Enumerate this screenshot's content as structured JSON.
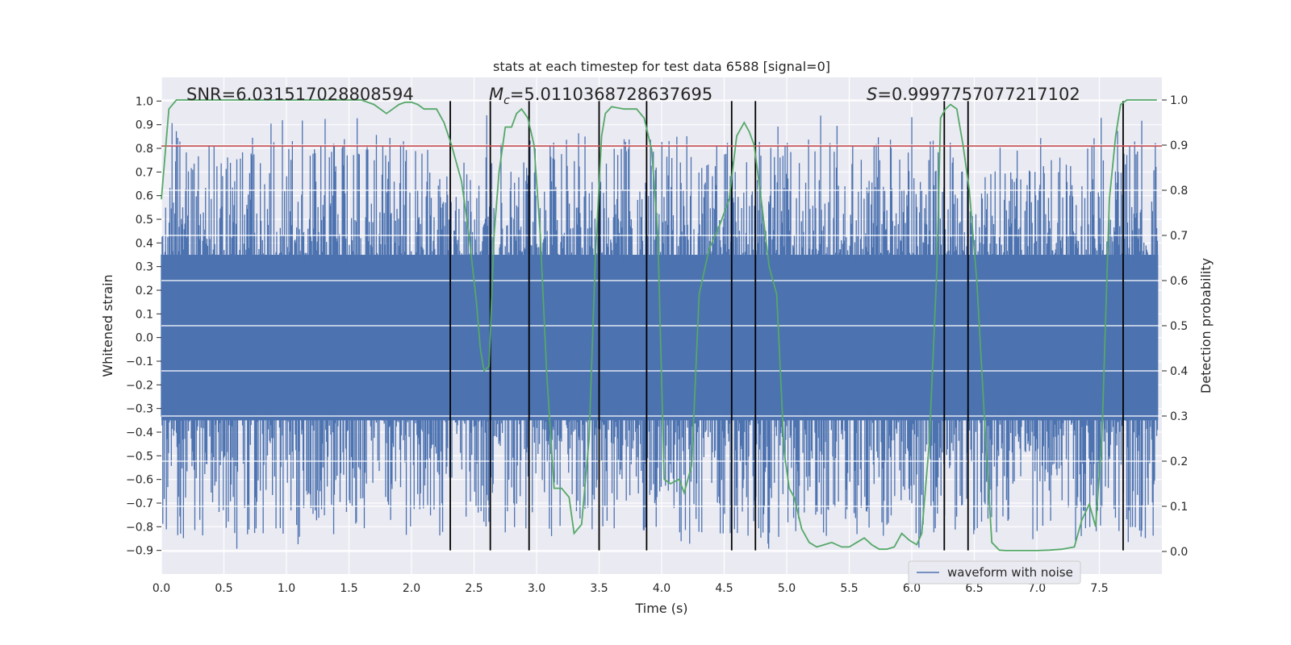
{
  "chart_data": {
    "type": "line",
    "title": "stats at each timestep for test data 6588 [signal=0]",
    "xlabel": "Time (s)",
    "ylabel": "Whitened strain",
    "y2label": "Detection probability",
    "xlim": [
      0,
      8
    ],
    "ylim": [
      -1.0,
      1.1
    ],
    "y2lim": [
      -0.05,
      1.05
    ],
    "x_ticks": [
      0.0,
      0.5,
      1.0,
      1.5,
      2.0,
      2.5,
      3.0,
      3.5,
      4.0,
      4.5,
      5.0,
      5.5,
      6.0,
      6.5,
      7.0,
      7.5
    ],
    "x_tick_labels": [
      "0.0",
      "0.5",
      "1.0",
      "1.5",
      "2.0",
      "2.5",
      "3.0",
      "3.5",
      "4.0",
      "4.5",
      "5.0",
      "5.5",
      "6.0",
      "6.5",
      "7.0",
      "7.5"
    ],
    "y_ticks": [
      -0.9,
      -0.8,
      -0.7,
      -0.6,
      -0.5,
      -0.4,
      -0.3,
      -0.2,
      -0.1,
      0.0,
      0.1,
      0.2,
      0.3,
      0.4,
      0.5,
      0.6,
      0.7,
      0.8,
      0.9,
      1.0
    ],
    "y_tick_labels": [
      "−0.9",
      "−0.8",
      "−0.7",
      "−0.6",
      "−0.5",
      "−0.4",
      "−0.3",
      "−0.2",
      "−0.1",
      "0.0",
      "0.1",
      "0.2",
      "0.3",
      "0.4",
      "0.5",
      "0.6",
      "0.7",
      "0.8",
      "0.9",
      "1.0"
    ],
    "y2_ticks": [
      0.0,
      0.1,
      0.2,
      0.3,
      0.4,
      0.5,
      0.6,
      0.7,
      0.8,
      0.9,
      1.0
    ],
    "y2_tick_labels": [
      "0.0",
      "0.1",
      "0.2",
      "0.3",
      "0.4",
      "0.5",
      "0.6",
      "0.7",
      "0.8",
      "0.9",
      "1.0"
    ],
    "grid": true,
    "legend": {
      "placement": "lower-right",
      "entries": [
        "waveform with noise"
      ]
    },
    "annotations": {
      "snr": "SNR=6.031517028808594",
      "mc_symbol": "M",
      "mc_sub": "c",
      "mc_value": "=5.0110368728637695",
      "s_symbol": "S",
      "s_value": "=0.9997757077217102"
    },
    "threshold": {
      "value": 0.81,
      "axis": "left",
      "color": "#c44e52"
    },
    "vertical_lines": [
      2.31,
      2.63,
      2.94,
      3.5,
      3.88,
      4.56,
      4.75,
      6.26,
      6.45,
      7.69
    ],
    "series": [
      {
        "name": "waveform with noise",
        "axis": "left",
        "kind": "noise",
        "color": "#4c72b0",
        "samples": 1400,
        "core_amplitude": 0.35,
        "peak_range": [
          -0.9,
          0.95
        ]
      },
      {
        "axis": "right",
        "color": "#55a868",
        "x": [
          0.0,
          0.06,
          0.12,
          0.2,
          0.3,
          0.4,
          0.5,
          0.6,
          0.7,
          0.8,
          0.9,
          1.0,
          1.1,
          1.2,
          1.3,
          1.4,
          1.5,
          1.6,
          1.7,
          1.8,
          1.85,
          1.9,
          1.95,
          2.0,
          2.05,
          2.1,
          2.2,
          2.26,
          2.32,
          2.4,
          2.46,
          2.52,
          2.55,
          2.58,
          2.62,
          2.66,
          2.7,
          2.75,
          2.8,
          2.84,
          2.88,
          2.93,
          2.98,
          3.03,
          3.08,
          3.14,
          3.2,
          3.26,
          3.3,
          3.36,
          3.42,
          3.47,
          3.52,
          3.55,
          3.6,
          3.7,
          3.8,
          3.86,
          3.92,
          3.97,
          4.02,
          4.07,
          4.14,
          4.18,
          4.24,
          4.3,
          4.38,
          4.46,
          4.54,
          4.6,
          4.66,
          4.7,
          4.74,
          4.8,
          4.86,
          4.92,
          4.98,
          5.02,
          5.06,
          5.12,
          5.18,
          5.24,
          5.3,
          5.36,
          5.44,
          5.5,
          5.56,
          5.62,
          5.68,
          5.74,
          5.8,
          5.86,
          5.92,
          5.98,
          6.04,
          6.08,
          6.14,
          6.2,
          6.23,
          6.27,
          6.31,
          6.36,
          6.41,
          6.46,
          6.52,
          6.58,
          6.64,
          6.7,
          6.75,
          6.8,
          6.9,
          7.0,
          7.1,
          7.2,
          7.3,
          7.36,
          7.42,
          7.47,
          7.52,
          7.58,
          7.63,
          7.67,
          7.72,
          7.77,
          7.83,
          7.9,
          7.96
        ],
        "values": [
          0.78,
          0.98,
          1.0,
          1.0,
          1.0,
          1.0,
          1.0,
          1.0,
          1.0,
          1.0,
          1.0,
          1.0,
          1.0,
          1.0,
          1.0,
          1.0,
          1.0,
          1.0,
          0.99,
          0.97,
          0.98,
          0.99,
          0.995,
          0.995,
          0.99,
          0.98,
          0.98,
          0.95,
          0.9,
          0.82,
          0.7,
          0.55,
          0.45,
          0.4,
          0.41,
          0.7,
          0.84,
          0.94,
          0.94,
          0.97,
          0.98,
          0.96,
          0.9,
          0.7,
          0.4,
          0.14,
          0.14,
          0.12,
          0.04,
          0.06,
          0.25,
          0.65,
          0.92,
          0.97,
          0.985,
          0.98,
          0.98,
          0.96,
          0.89,
          0.7,
          0.16,
          0.15,
          0.16,
          0.13,
          0.19,
          0.57,
          0.67,
          0.72,
          0.78,
          0.92,
          0.95,
          0.93,
          0.9,
          0.77,
          0.63,
          0.57,
          0.22,
          0.14,
          0.12,
          0.05,
          0.02,
          0.01,
          0.015,
          0.02,
          0.01,
          0.01,
          0.02,
          0.03,
          0.015,
          0.005,
          0.005,
          0.01,
          0.04,
          0.025,
          0.015,
          0.04,
          0.24,
          0.62,
          0.96,
          0.98,
          0.99,
          0.98,
          0.9,
          0.8,
          0.6,
          0.3,
          0.02,
          0.003,
          0.002,
          0.002,
          0.002,
          0.002,
          0.003,
          0.005,
          0.01,
          0.07,
          0.105,
          0.055,
          0.25,
          0.78,
          0.92,
          0.99,
          1.0,
          1.0,
          1.0,
          1.0,
          1.0
        ]
      }
    ]
  }
}
